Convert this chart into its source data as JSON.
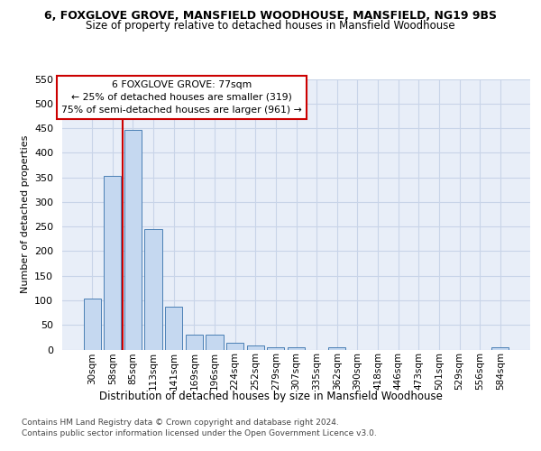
{
  "title": "6, FOXGLOVE GROVE, MANSFIELD WOODHOUSE, MANSFIELD, NG19 9BS",
  "subtitle": "Size of property relative to detached houses in Mansfield Woodhouse",
  "xlabel": "Distribution of detached houses by size in Mansfield Woodhouse",
  "ylabel": "Number of detached properties",
  "footer1": "Contains HM Land Registry data © Crown copyright and database right 2024.",
  "footer2": "Contains public sector information licensed under the Open Government Licence v3.0.",
  "annotation_line1": "6 FOXGLOVE GROVE: 77sqm",
  "annotation_line2": "← 25% of detached houses are smaller (319)",
  "annotation_line3": "75% of semi-detached houses are larger (961) →",
  "bar_color": "#c5d8f0",
  "bar_edge_color": "#4a7fb5",
  "grid_color": "#c8d4e8",
  "bg_color": "#e8eef8",
  "red_line_color": "#cc0000",
  "annotation_box_edge": "#cc0000",
  "categories": [
    "30sqm",
    "58sqm",
    "85sqm",
    "113sqm",
    "141sqm",
    "169sqm",
    "196sqm",
    "224sqm",
    "252sqm",
    "279sqm",
    "307sqm",
    "335sqm",
    "362sqm",
    "390sqm",
    "418sqm",
    "446sqm",
    "473sqm",
    "501sqm",
    "529sqm",
    "556sqm",
    "584sqm"
  ],
  "values": [
    103,
    353,
    447,
    244,
    87,
    30,
    30,
    13,
    8,
    5,
    4,
    0,
    4,
    0,
    0,
    0,
    0,
    0,
    0,
    0,
    4
  ],
  "ylim_max": 550,
  "yticks": [
    0,
    50,
    100,
    150,
    200,
    250,
    300,
    350,
    400,
    450,
    500,
    550
  ],
  "red_line_x": 1.5
}
